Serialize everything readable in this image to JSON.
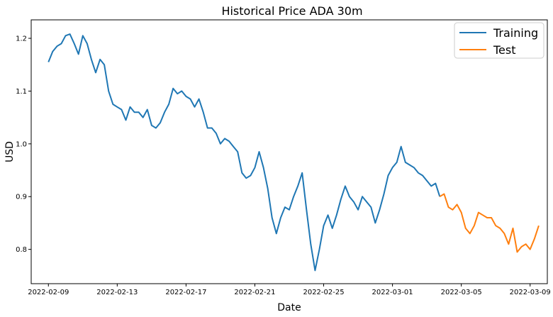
{
  "chart_data": {
    "type": "line",
    "title": "Historical Price ADA 30m",
    "xlabel": "Date",
    "ylabel": "USD",
    "x_ticks": [
      "2022-02-09",
      "2022-02-13",
      "2022-02-17",
      "2022-02-21",
      "2022-02-25",
      "2022-03-01",
      "2022-03-05",
      "2022-03-09"
    ],
    "y_ticks": [
      "0.8",
      "0.9",
      "1.0",
      "1.1",
      "1.2"
    ],
    "xlim": [
      "2022-02-08",
      "2022-03-10"
    ],
    "ylim": [
      0.735,
      1.235
    ],
    "grid": false,
    "legend_position": "top-right",
    "series": [
      {
        "name": "Training",
        "color": "#1f77b4",
        "points": [
          [
            "2022-02-09 00:00",
            1.155
          ],
          [
            "2022-02-09 06:00",
            1.175
          ],
          [
            "2022-02-09 12:00",
            1.185
          ],
          [
            "2022-02-09 18:00",
            1.19
          ],
          [
            "2022-02-10 00:00",
            1.205
          ],
          [
            "2022-02-10 06:00",
            1.208
          ],
          [
            "2022-02-10 12:00",
            1.19
          ],
          [
            "2022-02-10 18:00",
            1.17
          ],
          [
            "2022-02-11 00:00",
            1.205
          ],
          [
            "2022-02-11 06:00",
            1.19
          ],
          [
            "2022-02-11 12:00",
            1.16
          ],
          [
            "2022-02-11 18:00",
            1.135
          ],
          [
            "2022-02-12 00:00",
            1.16
          ],
          [
            "2022-02-12 06:00",
            1.15
          ],
          [
            "2022-02-12 12:00",
            1.1
          ],
          [
            "2022-02-12 18:00",
            1.075
          ],
          [
            "2022-02-13 00:00",
            1.07
          ],
          [
            "2022-02-13 06:00",
            1.065
          ],
          [
            "2022-02-13 12:00",
            1.045
          ],
          [
            "2022-02-13 18:00",
            1.07
          ],
          [
            "2022-02-14 00:00",
            1.06
          ],
          [
            "2022-02-14 06:00",
            1.06
          ],
          [
            "2022-02-14 12:00",
            1.05
          ],
          [
            "2022-02-14 18:00",
            1.065
          ],
          [
            "2022-02-15 00:00",
            1.035
          ],
          [
            "2022-02-15 06:00",
            1.03
          ],
          [
            "2022-02-15 12:00",
            1.04
          ],
          [
            "2022-02-15 18:00",
            1.06
          ],
          [
            "2022-02-16 00:00",
            1.075
          ],
          [
            "2022-02-16 06:00",
            1.105
          ],
          [
            "2022-02-16 12:00",
            1.095
          ],
          [
            "2022-02-16 18:00",
            1.1
          ],
          [
            "2022-02-17 00:00",
            1.09
          ],
          [
            "2022-02-17 06:00",
            1.085
          ],
          [
            "2022-02-17 12:00",
            1.07
          ],
          [
            "2022-02-17 18:00",
            1.085
          ],
          [
            "2022-02-18 00:00",
            1.06
          ],
          [
            "2022-02-18 06:00",
            1.03
          ],
          [
            "2022-02-18 12:00",
            1.03
          ],
          [
            "2022-02-18 18:00",
            1.02
          ],
          [
            "2022-02-19 00:00",
            1.0
          ],
          [
            "2022-02-19 06:00",
            1.01
          ],
          [
            "2022-02-19 12:00",
            1.005
          ],
          [
            "2022-02-19 18:00",
            0.995
          ],
          [
            "2022-02-20 00:00",
            0.985
          ],
          [
            "2022-02-20 06:00",
            0.945
          ],
          [
            "2022-02-20 12:00",
            0.935
          ],
          [
            "2022-02-20 18:00",
            0.94
          ],
          [
            "2022-02-21 00:00",
            0.955
          ],
          [
            "2022-02-21 06:00",
            0.985
          ],
          [
            "2022-02-21 12:00",
            0.955
          ],
          [
            "2022-02-21 18:00",
            0.915
          ],
          [
            "2022-02-22 00:00",
            0.86
          ],
          [
            "2022-02-22 06:00",
            0.83
          ],
          [
            "2022-02-22 12:00",
            0.86
          ],
          [
            "2022-02-22 18:00",
            0.88
          ],
          [
            "2022-02-23 00:00",
            0.875
          ],
          [
            "2022-02-23 06:00",
            0.9
          ],
          [
            "2022-02-23 12:00",
            0.92
          ],
          [
            "2022-02-23 18:00",
            0.945
          ],
          [
            "2022-02-24 00:00",
            0.875
          ],
          [
            "2022-02-24 06:00",
            0.81
          ],
          [
            "2022-02-24 12:00",
            0.76
          ],
          [
            "2022-02-24 18:00",
            0.8
          ],
          [
            "2022-02-25 00:00",
            0.845
          ],
          [
            "2022-02-25 06:00",
            0.865
          ],
          [
            "2022-02-25 12:00",
            0.84
          ],
          [
            "2022-02-25 18:00",
            0.865
          ],
          [
            "2022-02-26 00:00",
            0.895
          ],
          [
            "2022-02-26 06:00",
            0.92
          ],
          [
            "2022-02-26 12:00",
            0.9
          ],
          [
            "2022-02-26 18:00",
            0.89
          ],
          [
            "2022-02-27 00:00",
            0.875
          ],
          [
            "2022-02-27 06:00",
            0.9
          ],
          [
            "2022-02-27 12:00",
            0.89
          ],
          [
            "2022-02-27 18:00",
            0.88
          ],
          [
            "2022-02-28 00:00",
            0.85
          ],
          [
            "2022-02-28 06:00",
            0.875
          ],
          [
            "2022-02-28 12:00",
            0.905
          ],
          [
            "2022-02-28 18:00",
            0.94
          ],
          [
            "2022-03-01 00:00",
            0.955
          ],
          [
            "2022-03-01 06:00",
            0.965
          ],
          [
            "2022-03-01 12:00",
            0.995
          ],
          [
            "2022-03-01 18:00",
            0.965
          ],
          [
            "2022-03-02 00:00",
            0.96
          ],
          [
            "2022-03-02 06:00",
            0.955
          ],
          [
            "2022-03-02 12:00",
            0.945
          ],
          [
            "2022-03-02 18:00",
            0.94
          ],
          [
            "2022-03-03 00:00",
            0.93
          ],
          [
            "2022-03-03 06:00",
            0.92
          ],
          [
            "2022-03-03 12:00",
            0.925
          ],
          [
            "2022-03-03 18:00",
            0.9
          ]
        ]
      },
      {
        "name": "Test",
        "color": "#ff7f0e",
        "points": [
          [
            "2022-03-03 18:00",
            0.9
          ],
          [
            "2022-03-04 00:00",
            0.905
          ],
          [
            "2022-03-04 06:00",
            0.88
          ],
          [
            "2022-03-04 12:00",
            0.875
          ],
          [
            "2022-03-04 18:00",
            0.885
          ],
          [
            "2022-03-05 00:00",
            0.87
          ],
          [
            "2022-03-05 06:00",
            0.84
          ],
          [
            "2022-03-05 12:00",
            0.83
          ],
          [
            "2022-03-05 18:00",
            0.845
          ],
          [
            "2022-03-06 00:00",
            0.87
          ],
          [
            "2022-03-06 06:00",
            0.865
          ],
          [
            "2022-03-06 12:00",
            0.86
          ],
          [
            "2022-03-06 18:00",
            0.86
          ],
          [
            "2022-03-07 00:00",
            0.845
          ],
          [
            "2022-03-07 06:00",
            0.84
          ],
          [
            "2022-03-07 12:00",
            0.83
          ],
          [
            "2022-03-07 18:00",
            0.81
          ],
          [
            "2022-03-08 00:00",
            0.84
          ],
          [
            "2022-03-08 06:00",
            0.795
          ],
          [
            "2022-03-08 12:00",
            0.805
          ],
          [
            "2022-03-08 18:00",
            0.81
          ],
          [
            "2022-03-09 00:00",
            0.8
          ],
          [
            "2022-03-09 06:00",
            0.82
          ],
          [
            "2022-03-09 12:00",
            0.845
          ]
        ]
      }
    ]
  }
}
